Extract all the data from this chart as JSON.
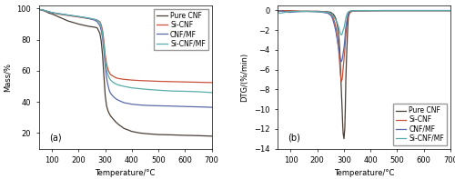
{
  "tg_temp": [
    50,
    60,
    70,
    80,
    90,
    100,
    120,
    140,
    160,
    180,
    200,
    220,
    240,
    260,
    270,
    280,
    285,
    290,
    295,
    300,
    305,
    310,
    315,
    320,
    325,
    330,
    340,
    350,
    370,
    400,
    430,
    460,
    500,
    550,
    600,
    650,
    700
  ],
  "tg_pure_cnf": [
    99.5,
    99.0,
    98.5,
    97.8,
    97.0,
    96.5,
    95.0,
    93.5,
    92.0,
    91.0,
    90.0,
    89.2,
    88.5,
    88.0,
    87.5,
    84.0,
    79.0,
    70.0,
    57.0,
    44.0,
    37.5,
    34.5,
    32.5,
    31.0,
    30.0,
    29.0,
    27.0,
    25.5,
    23.0,
    21.0,
    20.0,
    19.5,
    19.0,
    18.8,
    18.5,
    18.3,
    18.0
  ],
  "tg_si_cnf": [
    99.5,
    99.2,
    98.8,
    98.3,
    97.8,
    97.3,
    96.5,
    96.0,
    95.5,
    95.0,
    94.5,
    94.0,
    93.5,
    93.0,
    92.5,
    91.5,
    89.5,
    86.0,
    79.0,
    70.0,
    64.5,
    61.0,
    59.0,
    57.5,
    57.0,
    56.5,
    55.5,
    55.0,
    54.5,
    54.0,
    53.7,
    53.5,
    53.2,
    53.0,
    52.8,
    52.6,
    52.4
  ],
  "tg_cnf_mf": [
    99.5,
    99.2,
    98.8,
    98.3,
    97.8,
    97.3,
    96.8,
    96.3,
    95.8,
    95.3,
    94.8,
    94.2,
    93.5,
    92.5,
    91.5,
    89.0,
    86.0,
    81.0,
    73.0,
    63.0,
    55.5,
    51.0,
    47.5,
    45.5,
    44.5,
    43.5,
    42.0,
    41.0,
    39.5,
    38.5,
    38.0,
    37.7,
    37.5,
    37.3,
    37.0,
    36.8,
    36.5
  ],
  "tg_si_cnf_mf": [
    99.5,
    99.2,
    98.8,
    98.3,
    97.8,
    97.4,
    96.8,
    96.3,
    95.8,
    95.3,
    94.8,
    94.3,
    93.8,
    93.0,
    92.5,
    91.0,
    88.5,
    84.0,
    76.5,
    67.0,
    61.0,
    57.5,
    55.5,
    54.0,
    53.2,
    52.5,
    51.5,
    50.8,
    50.0,
    49.0,
    48.5,
    48.0,
    47.5,
    47.0,
    46.8,
    46.5,
    46.0
  ],
  "dtg_temp": [
    50,
    60,
    70,
    80,
    90,
    100,
    120,
    140,
    160,
    180,
    200,
    220,
    240,
    250,
    255,
    260,
    265,
    270,
    275,
    280,
    283,
    285,
    287,
    290,
    293,
    295,
    297,
    300,
    303,
    305,
    307,
    310,
    313,
    315,
    317,
    320,
    323,
    325,
    328,
    330,
    335,
    340,
    345,
    350,
    360,
    370,
    380,
    400,
    450,
    500,
    550,
    600,
    650,
    700
  ],
  "dtg_pure_cnf": [
    -0.05,
    -0.05,
    -0.05,
    -0.05,
    -0.05,
    -0.05,
    -0.1,
    -0.1,
    -0.1,
    -0.1,
    -0.1,
    -0.12,
    -0.15,
    -0.2,
    -0.3,
    -0.4,
    -0.6,
    -0.9,
    -1.5,
    -2.5,
    -3.5,
    -4.5,
    -6.0,
    -8.0,
    -10.0,
    -11.5,
    -12.5,
    -13.0,
    -12.0,
    -10.0,
    -7.0,
    -4.5,
    -2.5,
    -1.2,
    -0.6,
    -0.35,
    -0.2,
    -0.15,
    -0.12,
    -0.1,
    -0.08,
    -0.07,
    -0.06,
    -0.05,
    -0.05,
    -0.05,
    -0.05,
    -0.04,
    -0.03,
    -0.03,
    -0.03,
    -0.03,
    -0.03,
    -0.03
  ],
  "dtg_si_cnf": [
    -0.05,
    -0.05,
    -0.05,
    -0.05,
    -0.05,
    -0.05,
    -0.05,
    -0.1,
    -0.1,
    -0.1,
    -0.1,
    -0.12,
    -0.2,
    -0.35,
    -0.5,
    -0.8,
    -1.2,
    -1.8,
    -2.8,
    -4.0,
    -5.0,
    -5.8,
    -6.5,
    -7.2,
    -7.0,
    -6.5,
    -5.8,
    -5.0,
    -4.0,
    -3.2,
    -2.4,
    -1.6,
    -1.0,
    -0.6,
    -0.4,
    -0.3,
    -0.2,
    -0.15,
    -0.12,
    -0.1,
    -0.08,
    -0.07,
    -0.06,
    -0.05,
    -0.05,
    -0.04,
    -0.04,
    -0.03,
    -0.03,
    -0.03,
    -0.03,
    -0.03,
    -0.03,
    -0.03
  ],
  "dtg_cnf_mf": [
    -0.05,
    -0.05,
    -0.1,
    -0.15,
    -0.2,
    -0.2,
    -0.15,
    -0.12,
    -0.1,
    -0.12,
    -0.15,
    -0.2,
    -0.3,
    -0.5,
    -0.7,
    -1.1,
    -1.6,
    -2.2,
    -3.0,
    -3.8,
    -4.3,
    -4.7,
    -5.0,
    -5.2,
    -5.0,
    -4.7,
    -4.3,
    -3.8,
    -3.0,
    -2.3,
    -1.7,
    -1.2,
    -0.7,
    -0.4,
    -0.25,
    -0.15,
    -0.1,
    -0.08,
    -0.06,
    -0.05,
    -0.04,
    -0.04,
    -0.03,
    -0.03,
    -0.03,
    -0.03,
    -0.03,
    -0.03,
    -0.02,
    -0.02,
    -0.02,
    -0.02,
    -0.02,
    -0.02
  ],
  "dtg_si_cnf_mf": [
    -0.2,
    -0.3,
    -0.25,
    -0.2,
    -0.15,
    -0.12,
    -0.1,
    -0.1,
    -0.1,
    -0.12,
    -0.12,
    -0.15,
    -0.2,
    -0.3,
    -0.4,
    -0.6,
    -0.8,
    -1.0,
    -1.3,
    -1.7,
    -2.0,
    -2.2,
    -2.4,
    -2.5,
    -2.4,
    -2.2,
    -2.0,
    -1.8,
    -1.4,
    -1.1,
    -0.8,
    -0.5,
    -0.3,
    -0.2,
    -0.15,
    -0.1,
    -0.08,
    -0.06,
    -0.05,
    -0.04,
    -0.04,
    -0.03,
    -0.03,
    -0.03,
    -0.03,
    -0.02,
    -0.02,
    -0.02,
    -0.02,
    -0.02,
    -0.02,
    -0.02,
    -0.02,
    -0.02
  ],
  "color_pure_cnf": "#4a3f35",
  "color_si_cnf": "#c8523a",
  "color_cnf_mf": "#5b6aab",
  "color_si_cnf_mf": "#5aadaa",
  "legend_labels": [
    "Pure CNF",
    "Si-CNF",
    "CNF/MF",
    "Si-CNF/MF"
  ],
  "xlabel": "Temperature/°C",
  "ylabel_a": "Mass/%",
  "ylabel_b": "DTG/(%/min)",
  "label_a": "(a)",
  "label_b": "(b)",
  "xlim": [
    50,
    700
  ],
  "ylim_a": [
    10,
    102
  ],
  "ylim_b": [
    -14,
    0.5
  ],
  "xticks": [
    100,
    200,
    300,
    400,
    500,
    600,
    700
  ],
  "yticks_a": [
    20,
    40,
    60,
    80,
    100
  ],
  "yticks_b": [
    -14,
    -12,
    -10,
    -8,
    -6,
    -4,
    -2,
    0
  ],
  "linewidth": 0.9,
  "fontsize": 6.0
}
